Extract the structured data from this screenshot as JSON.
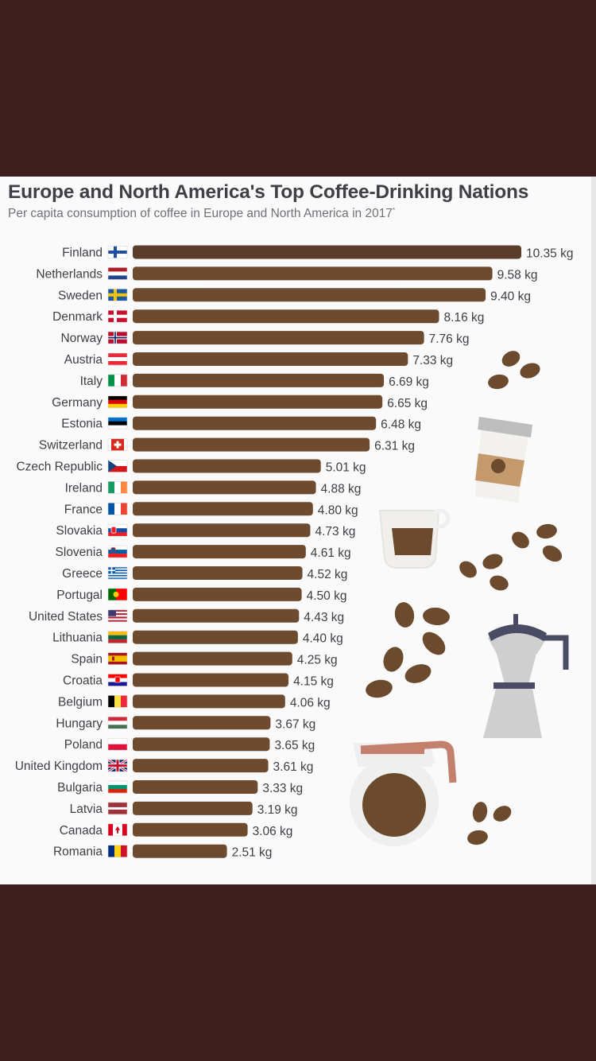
{
  "header": {
    "title": "Europe and North America's Top Coffee-Drinking Nations",
    "subtitle": "Per capita consumption of coffee in Europe and North America in 2017",
    "subtitle_marker": "*"
  },
  "colors": {
    "background": "#3c1f1c",
    "card": "#fafafa",
    "bar_top": "#5a3e2b",
    "bar": "#6e4b2f",
    "bean": "#6b4a2e",
    "cup_accent": "#c2806d",
    "pot_body": "#cfcfcf",
    "pot_band": "#4a4c63"
  },
  "chart_data": {
    "type": "bar",
    "orientation": "horizontal",
    "title": "Europe and North America's Top Coffee-Drinking Nations",
    "subtitle": "Per capita consumption of coffee in Europe and North America in 2017*",
    "unit": "kg",
    "xlim": [
      0,
      10.35
    ],
    "grid": false,
    "categories": [
      "Finland",
      "Netherlands",
      "Sweden",
      "Denmark",
      "Norway",
      "Austria",
      "Italy",
      "Germany",
      "Estonia",
      "Switzerland",
      "Czech Republic",
      "Ireland",
      "France",
      "Slovakia",
      "Slovenia",
      "Greece",
      "Portugal",
      "United States",
      "Lithuania",
      "Spain",
      "Croatia",
      "Belgium",
      "Hungary",
      "Poland",
      "United Kingdom",
      "Bulgaria",
      "Latvia",
      "Canada",
      "Romania"
    ],
    "values": [
      10.35,
      9.58,
      9.4,
      8.16,
      7.76,
      7.33,
      6.69,
      6.65,
      6.48,
      6.31,
      5.01,
      4.88,
      4.8,
      4.73,
      4.61,
      4.52,
      4.5,
      4.43,
      4.4,
      4.25,
      4.15,
      4.06,
      3.67,
      3.65,
      3.61,
      3.33,
      3.19,
      3.06,
      2.51
    ],
    "value_labels": [
      "10.35 kg",
      "9.58 kg",
      "9.40 kg",
      "8.16 kg",
      "7.76 kg",
      "7.33 kg",
      "6.69 kg",
      "6.65 kg",
      "6.48 kg",
      "6.31 kg",
      "5.01 kg",
      "4.88 kg",
      "4.80 kg",
      "4.73 kg",
      "4.61 kg",
      "4.52 kg",
      "4.50 kg",
      "4.43 kg",
      "4.40 kg",
      "4.25 kg",
      "4.15 kg",
      "4.06 kg",
      "3.67 kg",
      "3.65 kg",
      "3.61 kg",
      "3.33 kg",
      "3.19 kg",
      "3.06 kg",
      "2.51 kg"
    ],
    "flags": [
      "finland-flag-icon",
      "netherlands-flag-icon",
      "sweden-flag-icon",
      "denmark-flag-icon",
      "norway-flag-icon",
      "austria-flag-icon",
      "italy-flag-icon",
      "germany-flag-icon",
      "estonia-flag-icon",
      "switzerland-flag-icon",
      "czech-republic-flag-icon",
      "ireland-flag-icon",
      "france-flag-icon",
      "slovakia-flag-icon",
      "slovenia-flag-icon",
      "greece-flag-icon",
      "portugal-flag-icon",
      "united-states-flag-icon",
      "lithuania-flag-icon",
      "spain-flag-icon",
      "croatia-flag-icon",
      "belgium-flag-icon",
      "hungary-flag-icon",
      "poland-flag-icon",
      "united-kingdom-flag-icon",
      "bulgaria-flag-icon",
      "latvia-flag-icon",
      "canada-flag-icon",
      "romania-flag-icon"
    ]
  },
  "decorations": [
    "coffee-bean-icon",
    "takeaway-cup-icon",
    "espresso-cup-icon",
    "moka-pot-icon",
    "coffee-carafe-icon"
  ]
}
